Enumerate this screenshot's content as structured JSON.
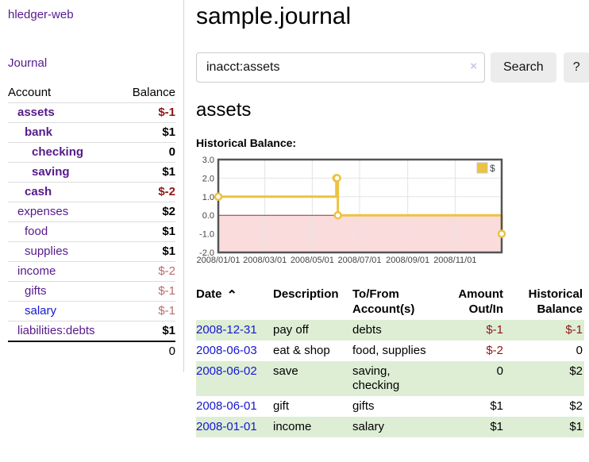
{
  "colors": {
    "accent_purple": "#551a8b",
    "link_blue": "#1616d1",
    "negative_strong": "#911616",
    "negative_soft": "#bd6a6a",
    "row_green": "#ddeed5",
    "chart_line": "#edc240",
    "chart_negative_fill": "#fbdcdc",
    "chart_zero_line": "#a43030",
    "chart_border": "#545454",
    "grid": "#e3e3e3",
    "button_bg": "#ececec"
  },
  "sidebar": {
    "brand": "hledger-web",
    "journal_link": "Journal",
    "accounts_table": {
      "headers": [
        "Account",
        "Balance"
      ],
      "rows": [
        {
          "account": "assets",
          "balance": "$-1",
          "level": 1,
          "bold": true,
          "negative": "strong"
        },
        {
          "account": "bank",
          "balance": "$1",
          "level": 2,
          "bold": true
        },
        {
          "account": "checking",
          "balance": "0",
          "level": 3,
          "bold": true
        },
        {
          "account": "saving",
          "balance": "$1",
          "level": 3,
          "bold": true
        },
        {
          "account": "cash",
          "balance": "$-2",
          "level": 2,
          "bold": true,
          "negative": "strong"
        },
        {
          "account": "expenses",
          "balance": "$2",
          "level": 1
        },
        {
          "account": "food",
          "balance": "$1",
          "level": 2
        },
        {
          "account": "supplies",
          "balance": "$1",
          "level": 2
        },
        {
          "account": "income",
          "balance": "$-2",
          "level": 1,
          "negative": "soft"
        },
        {
          "account": "gifts",
          "balance": "$-1",
          "level": 2,
          "negative": "soft"
        },
        {
          "account": "salary",
          "balance": "$-1",
          "level": 2,
          "negative": "soft",
          "link_color": "blue"
        },
        {
          "account": "liabilities:debts",
          "balance": "$1",
          "level": 1
        }
      ],
      "total": "0"
    }
  },
  "main": {
    "title": "sample.journal",
    "search": {
      "value": "inacct:assets",
      "clear_icon": "×",
      "button_label": "Search",
      "help_label": "?"
    },
    "account_heading": "assets",
    "chart_label": "Historical Balance:",
    "register": {
      "sort_icon": "⌃",
      "headers": [
        {
          "line1": "Date",
          "line2": "",
          "align": "left"
        },
        {
          "line1": "Description",
          "line2": "",
          "align": "left"
        },
        {
          "line1": "To/From",
          "line2": "Account(s)",
          "align": "left"
        },
        {
          "line1": "Amount",
          "line2": "Out/In",
          "align": "right"
        },
        {
          "line1": "Historical",
          "line2": "Balance",
          "align": "right"
        }
      ],
      "rows": [
        {
          "date": "2008-12-31",
          "description": "pay off",
          "accounts": "debts",
          "amount": "$-1",
          "amount_negative": true,
          "balance": "$-1",
          "balance_negative": true
        },
        {
          "date": "2008-06-03",
          "description": "eat & shop",
          "accounts": "food, supplies",
          "amount": "$-2",
          "amount_negative": true,
          "balance": "0",
          "balance_negative": false
        },
        {
          "date": "2008-06-02",
          "description": "save",
          "accounts": "saving, checking",
          "amount": "0",
          "amount_negative": false,
          "balance": "$2",
          "balance_negative": false
        },
        {
          "date": "2008-06-01",
          "description": "gift",
          "accounts": "gifts",
          "amount": "$1",
          "amount_negative": false,
          "balance": "$2",
          "balance_negative": false
        },
        {
          "date": "2008-01-01",
          "description": "income",
          "accounts": "salary",
          "amount": "$1",
          "amount_negative": false,
          "balance": "$1",
          "balance_negative": false
        }
      ]
    }
  },
  "chart_data": {
    "type": "line",
    "style": "step-after",
    "title": "Historical Balance:",
    "legend": {
      "position": "top-right",
      "label": "$"
    },
    "series": [
      {
        "name": "$",
        "color": "#edc240",
        "points": [
          [
            "2008-01-01",
            1
          ],
          [
            "2008-06-01",
            2
          ],
          [
            "2008-06-02",
            2
          ],
          [
            "2008-06-03",
            0
          ],
          [
            "2008-12-31",
            -1
          ]
        ]
      }
    ],
    "xlim": [
      "2008-01-01",
      "2008-12-31"
    ],
    "ylim": [
      -2,
      3
    ],
    "x_ticks": [
      "2008/01/01",
      "2008/03/01",
      "2008/05/01",
      "2008/07/01",
      "2008/09/01",
      "2008/11/01"
    ],
    "y_ticks": [
      3,
      2,
      1,
      0,
      -1,
      -2
    ],
    "y_tick_labels": [
      "3.0",
      "2.0",
      "1.0",
      "0.0",
      "-1.0",
      "-2.0"
    ],
    "grid": true,
    "negative_region": {
      "from": 0,
      "to": -2
    }
  }
}
